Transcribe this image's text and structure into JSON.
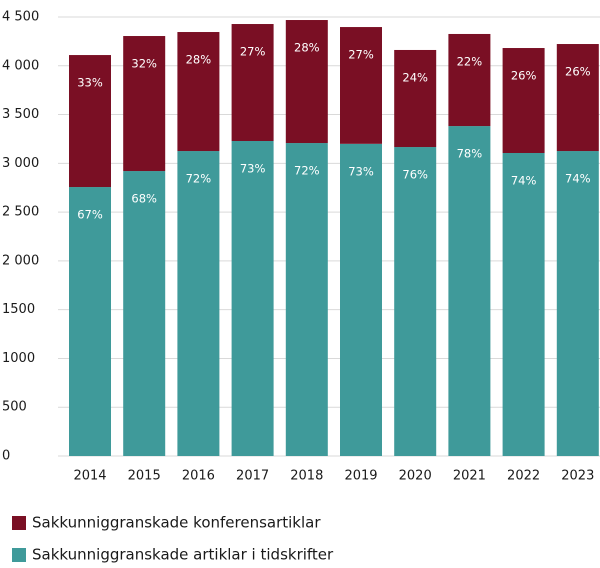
{
  "chart_data": {
    "type": "stacked_bar",
    "categories": [
      "2014",
      "2015",
      "2016",
      "2017",
      "2018",
      "2019",
      "2020",
      "2021",
      "2022",
      "2023"
    ],
    "series": [
      {
        "name": "Sakkunniggranskade artiklar i tidskrifter",
        "color": "#3f9a9a",
        "values": [
          2757,
          2921,
          3126,
          3229,
          3208,
          3200,
          3167,
          3382,
          3106,
          3126
        ],
        "labels": [
          "67%",
          "68%",
          "72%",
          "73%",
          "72%",
          "73%",
          "76%",
          "78%",
          "74%",
          "74%"
        ]
      },
      {
        "name": "Sakkunniggranskade konferensartiklar",
        "color": "#7a0f24",
        "values": [
          1353,
          1384,
          1220,
          1199,
          1261,
          1197,
          995,
          944,
          1076,
          1097
        ],
        "labels": [
          "33%",
          "32%",
          "28%",
          "27%",
          "28%",
          "27%",
          "24%",
          "22%",
          "26%",
          "26%"
        ]
      }
    ],
    "ylim": [
      0,
      4500
    ],
    "yticks": [
      0,
      500,
      {
        "value": 1000,
        "label": "1000"
      },
      {
        "value": 1500,
        "label": "1500"
      },
      {
        "value": 2000,
        "label": "2 000"
      },
      {
        "value": 2500,
        "label": "2 500"
      },
      {
        "value": 3000,
        "label": "3 000"
      },
      {
        "value": 3500,
        "label": "3 500"
      },
      {
        "value": 4000,
        "label": "4 000"
      },
      {
        "value": 4500,
        "label": "4 500"
      }
    ],
    "grid": true,
    "legend": "bottom"
  }
}
